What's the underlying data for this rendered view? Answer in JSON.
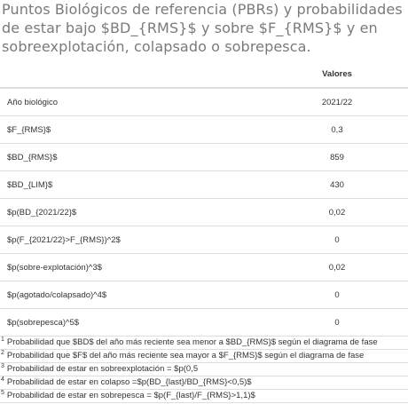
{
  "caption": "Puntos Biológicos de referencia (PBRs) y probabilidades de estar bajo $BD_{RMS}$ y sobre $F_{RMS}$ y en sobreexplotación, colapsado o sobrepesca.",
  "table": {
    "header_label": "",
    "header_value": "Valores",
    "rows": [
      {
        "label": "Año biológico",
        "value": "2021/22"
      },
      {
        "label": "$F_{RMS}$",
        "value": "0,3"
      },
      {
        "label": "$BD_{RMS}$",
        "value": "859"
      },
      {
        "label": "$BD_{LIM}$",
        "value": "430"
      },
      {
        "label": "$p(BD_{2021/22}$",
        "value": "0,02"
      },
      {
        "label": "$p(F_{2021/22}>F_{RMS})^2$",
        "value": "0"
      },
      {
        "label": "$p(sobre-explotación)^3$",
        "value": "0,02"
      },
      {
        "label": "$p(agotado/colapsado)^4$",
        "value": "0"
      },
      {
        "label": "$p(sobrepesca)^5$",
        "value": "0"
      }
    ]
  },
  "footnotes": [
    {
      "marker": "1",
      "text": "Probabilidad que $BD$ del año más reciente sea menor a $BD_{RMS}$ según el diagrama de fase"
    },
    {
      "marker": "2",
      "text": "Probabilidad que $F$ del año más reciente sea mayor a $F_{RMS}$ según el diagrama de fase"
    },
    {
      "marker": "3",
      "text": "Probabilidad de estar en sobreexplotación = $p(0,5"
    },
    {
      "marker": "4",
      "text": "Probabilidad de estar en colapso =$p(BD_{last}/BD_{RMS}<0,5)$"
    },
    {
      "marker": "5",
      "text": "Probabilidad de estar en sobrepesca = $p(F_{last}/F_{RMS}>1,1)$"
    }
  ]
}
